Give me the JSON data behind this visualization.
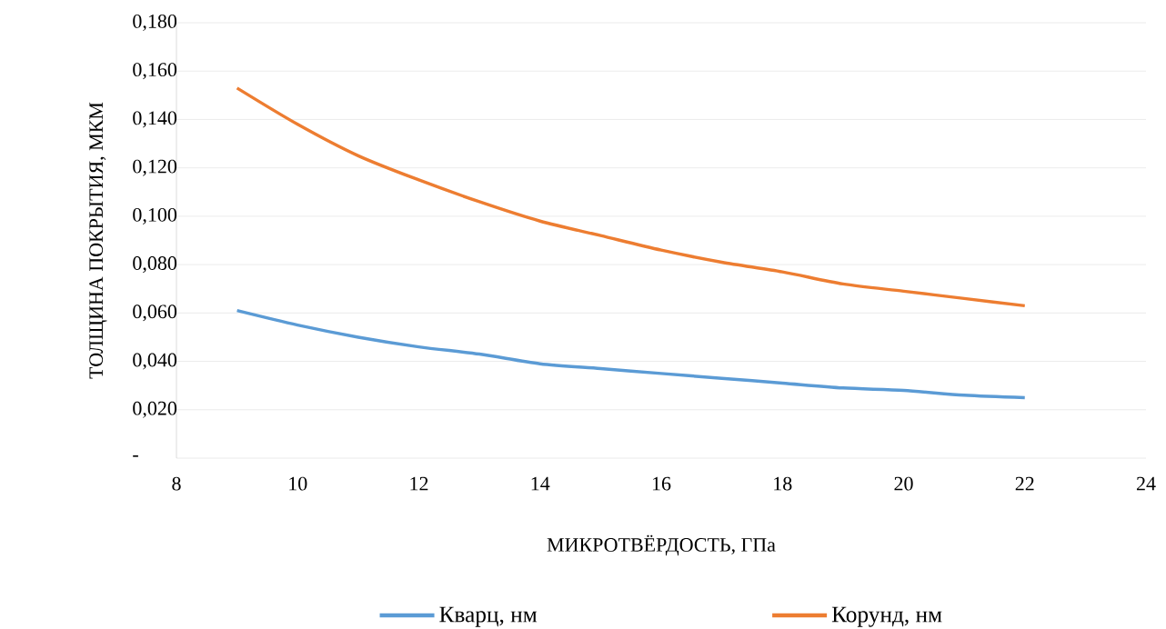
{
  "chart_data": {
    "type": "line",
    "xlabel": "МИКРОТВЁРДОСТЬ, ГПа",
    "ylabel": "ТОЛЩИНА ПОКРЫТИЯ, МКМ",
    "x": [
      9,
      10,
      11,
      12,
      13,
      14,
      15,
      16,
      17,
      18,
      19,
      20,
      21,
      22
    ],
    "series": [
      {
        "name": "Кварц, нм",
        "color": "#5b9bd5",
        "values": [
          0.061,
          0.055,
          0.05,
          0.046,
          0.043,
          0.039,
          0.037,
          0.035,
          0.033,
          0.031,
          0.029,
          0.028,
          0.026,
          0.025
        ]
      },
      {
        "name": "Корунд, нм",
        "color": "#ed7d31",
        "values": [
          0.153,
          0.138,
          0.125,
          0.115,
          0.106,
          0.098,
          0.092,
          0.086,
          0.081,
          0.077,
          0.072,
          0.069,
          0.066,
          0.063
        ]
      }
    ],
    "xlim": [
      8,
      24
    ],
    "xticks": [
      8,
      10,
      12,
      14,
      16,
      18,
      20,
      22,
      24
    ],
    "ylim": [
      0,
      0.18
    ],
    "yticks": [
      {
        "value": 0,
        "label": "-"
      },
      {
        "value": 0.02,
        "label": "0,020"
      },
      {
        "value": 0.04,
        "label": "0,040"
      },
      {
        "value": 0.06,
        "label": "0,060"
      },
      {
        "value": 0.08,
        "label": "0,080"
      },
      {
        "value": 0.1,
        "label": "0,100"
      },
      {
        "value": 0.12,
        "label": "0,120"
      },
      {
        "value": 0.14,
        "label": "0,140"
      },
      {
        "value": 0.16,
        "label": "0,160"
      },
      {
        "value": 0.18,
        "label": "0,180"
      }
    ],
    "grid": "y",
    "legend": "bottom",
    "marker": "none",
    "line_style": "solid"
  }
}
